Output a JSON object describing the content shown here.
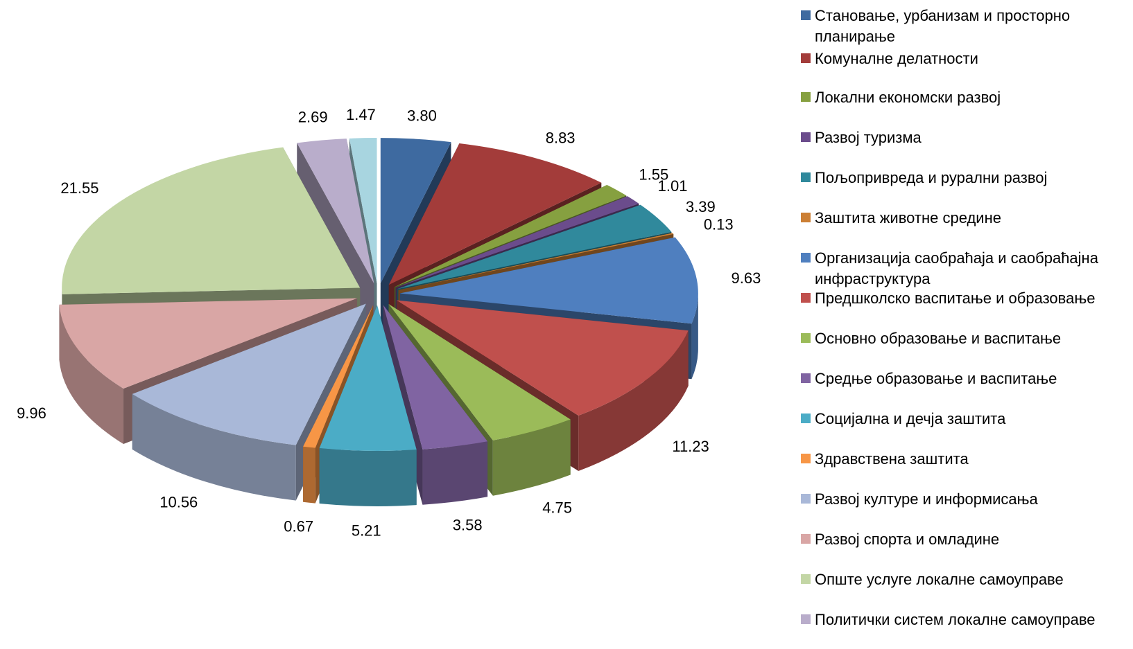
{
  "chart_data": {
    "type": "pie",
    "title": "",
    "legend_position": "right",
    "style": "3d-exploded",
    "slices": [
      {
        "label": "Становање, урбанизам и просторно планирање",
        "value": 3.8,
        "display": "3.80",
        "color": "#3e6aa0"
      },
      {
        "label": "Комуналне делатности",
        "value": 8.83,
        "display": "8.83",
        "color": "#a33c3a"
      },
      {
        "label": "Локални економски развој",
        "value": 1.55,
        "display": "1.55",
        "color": "#86a040"
      },
      {
        "label": "Развој туризма",
        "value": 1.01,
        "display": "1.01",
        "color": "#6b4c8c"
      },
      {
        "label": "Пољопривреда и рурални развој",
        "value": 3.39,
        "display": "3.39",
        "color": "#30899c"
      },
      {
        "label": "Заштита животне средине",
        "value": 0.13,
        "display": "0.13",
        "color": "#cc7f34"
      },
      {
        "label": "Организација саобраћаја и саобраћајна инфраструктура",
        "value": 9.63,
        "display": "9.63",
        "color": "#4f7fbf"
      },
      {
        "label": "Предшколско васпитање и образовање",
        "value": 11.23,
        "display": "11.23",
        "color": "#c0504d"
      },
      {
        "label": "Основно образовање и васпитање",
        "value": 4.75,
        "display": "4.75",
        "color": "#9bbb59"
      },
      {
        "label": "Средње образовање и васпитање",
        "value": 3.58,
        "display": "3.58",
        "color": "#8064a2"
      },
      {
        "label": "Социјална и дечја заштита",
        "value": 5.21,
        "display": "5.21",
        "color": "#4bacc6"
      },
      {
        "label": "Здравствена заштита",
        "value": 0.67,
        "display": "0.67",
        "color": "#f79646"
      },
      {
        "label": "Развој културе и информисања",
        "value": 10.56,
        "display": "10.56",
        "color": "#a9b8d8"
      },
      {
        "label": "Развој спорта и омладине",
        "value": 9.96,
        "display": "9.96",
        "color": "#d9a6a5"
      },
      {
        "label": "Опште услуге локалне самоуправе",
        "value": 21.55,
        "display": "21.55",
        "color": "#c3d6a5"
      },
      {
        "label": "Политички систем локалне самоуправе",
        "value": 2.69,
        "display": "2.69",
        "color": "#b9adcb"
      },
      {
        "label": "",
        "value": 1.47,
        "display": "1.47",
        "color": "#a8d5e0"
      }
    ]
  }
}
